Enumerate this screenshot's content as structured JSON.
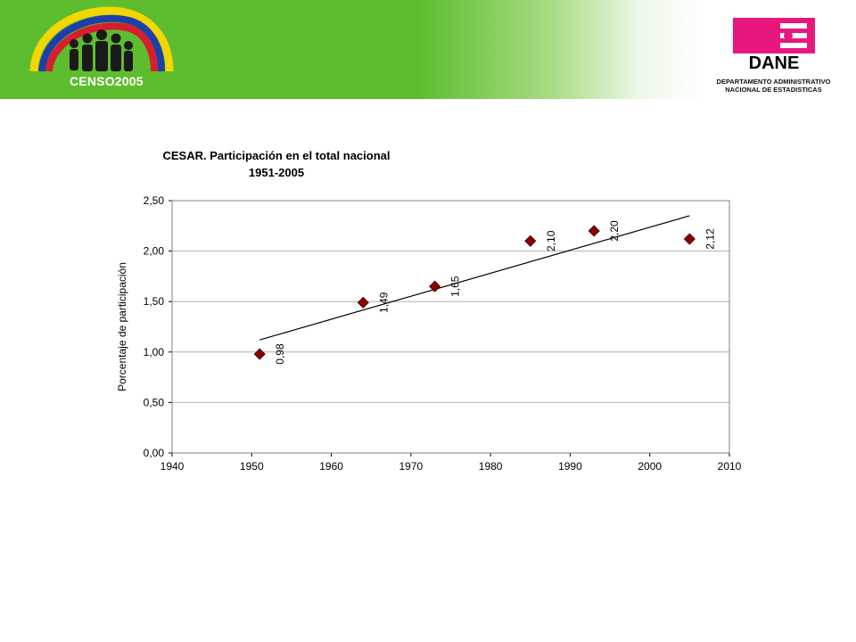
{
  "header": {
    "censo_logo_text": "CENSO",
    "censo_logo_year": "2005",
    "dane_logo_text": "DANE",
    "dane_caption_line1": "DEPARTAMENTO ADMINISTRATIVO",
    "dane_caption_line2": "NACIONAL DE ESTADISTICAS"
  },
  "colors": {
    "banner_green": "#5ebd2e",
    "dane_magenta": "#e8177f",
    "marker": "#8b0000"
  },
  "chart_data": {
    "type": "scatter",
    "title": "CESAR.  Participación en el total nacional",
    "subtitle": "1951-2005",
    "xlabel": "",
    "ylabel": "Porcentaje de participación",
    "xlim": [
      1940,
      2010
    ],
    "ylim": [
      0,
      2.5
    ],
    "x_ticks": [
      "1940",
      "1950",
      "1960",
      "1970",
      "1980",
      "1990",
      "2000",
      "2010"
    ],
    "y_ticks": [
      "0,00",
      "0,50",
      "1,00",
      "1,50",
      "2,00",
      "2,50"
    ],
    "grid": true,
    "legend": "none",
    "trendline": {
      "type": "linear",
      "from": [
        1951,
        1.12
      ],
      "to": [
        2005,
        2.35
      ]
    },
    "series": [
      {
        "x": [
          1951,
          1964,
          1973,
          1985,
          1993,
          2005
        ],
        "y": [
          0.98,
          1.49,
          1.65,
          2.1,
          2.2,
          2.12
        ],
        "labels": [
          "0,98",
          "1,49",
          "1,65",
          "2,10",
          "2,20",
          "2,12"
        ]
      }
    ]
  }
}
